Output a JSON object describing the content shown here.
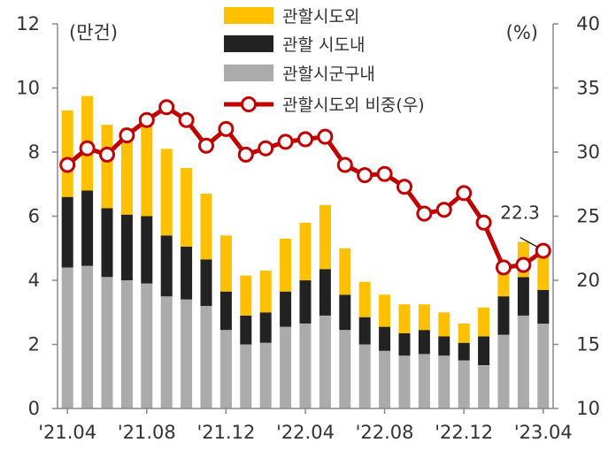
{
  "chart_data": {
    "type": "bar",
    "stacked": true,
    "title": "",
    "x": [
      "2021-04",
      "2021-05",
      "2021-06",
      "2021-07",
      "2021-08",
      "2021-09",
      "2021-10",
      "2021-11",
      "2021-12",
      "2022-01",
      "2022-02",
      "2022-03",
      "2022-04",
      "2022-05",
      "2022-06",
      "2022-07",
      "2022-08",
      "2022-09",
      "2022-10",
      "2022-11",
      "2022-12",
      "2023-01",
      "2023-02",
      "2023-03",
      "2023-04"
    ],
    "x_tick_labels": [
      {
        "at": "2021-04",
        "label": "'21.04"
      },
      {
        "at": "2021-08",
        "label": "'21.08"
      },
      {
        "at": "2021-12",
        "label": "'21.12"
      },
      {
        "at": "2022-04",
        "label": "'22.04"
      },
      {
        "at": "2022-08",
        "label": "'22.08"
      },
      {
        "at": "2022-12",
        "label": "'22.12"
      },
      {
        "at": "2023-04",
        "label": "'23.04"
      }
    ],
    "y_left": {
      "unit": "(만건)",
      "min": 0,
      "max": 12,
      "ticks": [
        "0",
        "2",
        "4",
        "6",
        "8",
        "10",
        "12"
      ]
    },
    "y_right": {
      "unit": "(%)",
      "min": 10,
      "max": 40,
      "ticks": [
        "10",
        "15",
        "20",
        "25",
        "30",
        "35",
        "40"
      ]
    },
    "grid": false,
    "legend_position": "top",
    "series": [
      {
        "name": "관할시도외",
        "axis": "left",
        "kind": "bar",
        "color": "#FFC000",
        "values": [
          2.7,
          2.95,
          2.6,
          2.7,
          2.8,
          2.7,
          2.45,
          2.05,
          1.75,
          1.25,
          1.3,
          1.65,
          1.8,
          2.0,
          1.45,
          1.1,
          1.0,
          0.9,
          0.8,
          0.75,
          0.6,
          0.9,
          1.1,
          1.1,
          1.2
        ]
      },
      {
        "name": "관할 시도내",
        "axis": "left",
        "kind": "bar",
        "color": "#222222",
        "values": [
          2.2,
          2.35,
          2.15,
          2.05,
          2.1,
          1.9,
          1.65,
          1.45,
          1.2,
          0.9,
          0.95,
          1.1,
          1.35,
          1.45,
          1.1,
          0.85,
          0.75,
          0.7,
          0.75,
          0.6,
          0.55,
          0.9,
          1.2,
          1.2,
          1.05
        ]
      },
      {
        "name": "관할시군구내",
        "axis": "left",
        "kind": "bar",
        "color": "#ABABAB",
        "values": [
          4.4,
          4.45,
          4.1,
          4.0,
          3.9,
          3.5,
          3.4,
          3.2,
          2.45,
          2.0,
          2.05,
          2.55,
          2.65,
          2.9,
          2.45,
          2.0,
          1.8,
          1.65,
          1.7,
          1.65,
          1.5,
          1.35,
          2.3,
          2.9,
          2.65
        ]
      },
      {
        "name": "관할시도외 비중(우)",
        "axis": "right",
        "kind": "line",
        "color": "#C00000",
        "values": [
          29.0,
          30.3,
          29.8,
          31.3,
          32.5,
          33.5,
          32.5,
          30.5,
          31.8,
          29.8,
          30.3,
          30.8,
          31.0,
          31.2,
          29.0,
          28.2,
          28.3,
          27.3,
          25.2,
          25.5,
          26.8,
          24.5,
          21.0,
          21.2,
          22.3
        ]
      }
    ],
    "annotations": [
      {
        "at": "2023-04",
        "series": "관할시도외 비중(우)",
        "text": "22.3"
      }
    ]
  }
}
